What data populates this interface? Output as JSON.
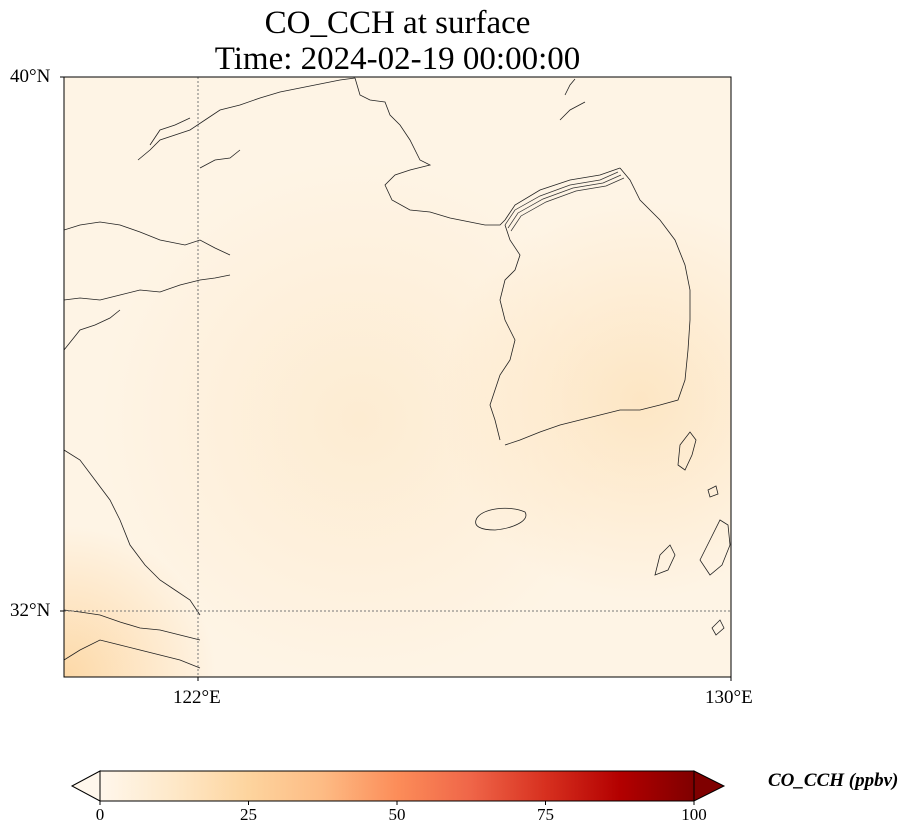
{
  "title": {
    "line1": "CO_CCH at surface",
    "line2": "Time: 2024-02-19 00:00:00"
  },
  "axes": {
    "lat_labels": [
      "40°N",
      "32°N"
    ],
    "lon_labels": [
      "122°E",
      "130°E"
    ],
    "extent": {
      "lon_min": 120.0,
      "lon_max": 130.0,
      "lat_min": 31.0,
      "lat_max": 40.0
    },
    "gridlines": {
      "lon": [
        122
      ],
      "lat": [
        32
      ],
      "style": "dotted"
    }
  },
  "colorbar": {
    "label": "CO_CCH (ppbv)",
    "ticks": [
      "0",
      "25",
      "50",
      "75",
      "100"
    ],
    "range": [
      0,
      100
    ],
    "extend": "both",
    "colormap": "OrRd",
    "colors": [
      "#fff7ec",
      "#fee8c8",
      "#fdd49e",
      "#fdbb84",
      "#fc8d59",
      "#ef6548",
      "#d7301f",
      "#b30000",
      "#7f0000"
    ]
  },
  "field": {
    "description_values_ppbv": "mostly 2-10 ppbv over the domain, up to ~20 ppbv near the southwest corner",
    "background_color": "#fef3e2"
  }
}
